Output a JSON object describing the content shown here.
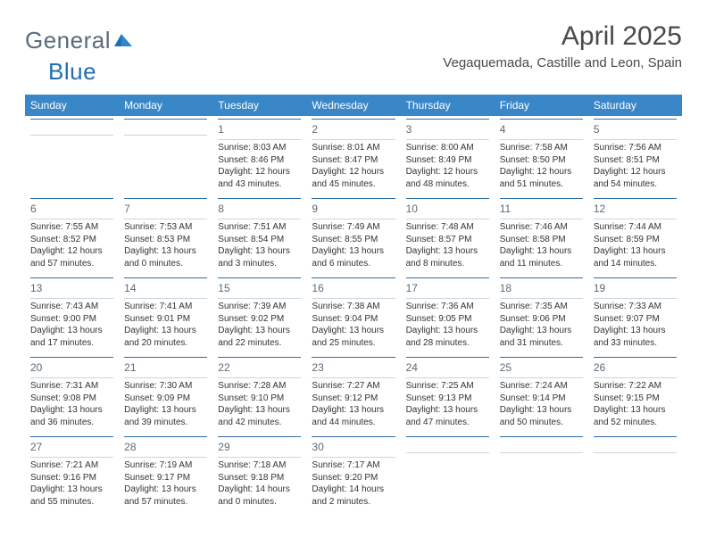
{
  "brand": {
    "word1": "General",
    "word2": "Blue",
    "text_color": "#5a6b7a",
    "accent_color": "#1f6fb2"
  },
  "header": {
    "title": "April 2025",
    "location": "Vegaquemada, Castille and Leon, Spain"
  },
  "style": {
    "header_bg": "#3a87c8",
    "header_fg": "#ffffff",
    "cell_top_border": "#2f6da8",
    "cell_bottom_border": "#c9d6e0",
    "daynum_color": "#5a6b7a",
    "detail_color": "#333333",
    "detail_fontsize": 10,
    "daynum_fontsize": 12,
    "th_fontsize": 12,
    "title_fontsize": 30,
    "location_fontsize": 15
  },
  "days_of_week": [
    "Sunday",
    "Monday",
    "Tuesday",
    "Wednesday",
    "Thursday",
    "Friday",
    "Saturday"
  ],
  "weeks": [
    [
      {
        "empty": true
      },
      {
        "empty": true
      },
      {
        "n": "1",
        "sunrise": "Sunrise: 8:03 AM",
        "sunset": "Sunset: 8:46 PM",
        "day1": "Daylight: 12 hours",
        "day2": "and 43 minutes."
      },
      {
        "n": "2",
        "sunrise": "Sunrise: 8:01 AM",
        "sunset": "Sunset: 8:47 PM",
        "day1": "Daylight: 12 hours",
        "day2": "and 45 minutes."
      },
      {
        "n": "3",
        "sunrise": "Sunrise: 8:00 AM",
        "sunset": "Sunset: 8:49 PM",
        "day1": "Daylight: 12 hours",
        "day2": "and 48 minutes."
      },
      {
        "n": "4",
        "sunrise": "Sunrise: 7:58 AM",
        "sunset": "Sunset: 8:50 PM",
        "day1": "Daylight: 12 hours",
        "day2": "and 51 minutes."
      },
      {
        "n": "5",
        "sunrise": "Sunrise: 7:56 AM",
        "sunset": "Sunset: 8:51 PM",
        "day1": "Daylight: 12 hours",
        "day2": "and 54 minutes."
      }
    ],
    [
      {
        "n": "6",
        "sunrise": "Sunrise: 7:55 AM",
        "sunset": "Sunset: 8:52 PM",
        "day1": "Daylight: 12 hours",
        "day2": "and 57 minutes."
      },
      {
        "n": "7",
        "sunrise": "Sunrise: 7:53 AM",
        "sunset": "Sunset: 8:53 PM",
        "day1": "Daylight: 13 hours",
        "day2": "and 0 minutes."
      },
      {
        "n": "8",
        "sunrise": "Sunrise: 7:51 AM",
        "sunset": "Sunset: 8:54 PM",
        "day1": "Daylight: 13 hours",
        "day2": "and 3 minutes."
      },
      {
        "n": "9",
        "sunrise": "Sunrise: 7:49 AM",
        "sunset": "Sunset: 8:55 PM",
        "day1": "Daylight: 13 hours",
        "day2": "and 6 minutes."
      },
      {
        "n": "10",
        "sunrise": "Sunrise: 7:48 AM",
        "sunset": "Sunset: 8:57 PM",
        "day1": "Daylight: 13 hours",
        "day2": "and 8 minutes."
      },
      {
        "n": "11",
        "sunrise": "Sunrise: 7:46 AM",
        "sunset": "Sunset: 8:58 PM",
        "day1": "Daylight: 13 hours",
        "day2": "and 11 minutes."
      },
      {
        "n": "12",
        "sunrise": "Sunrise: 7:44 AM",
        "sunset": "Sunset: 8:59 PM",
        "day1": "Daylight: 13 hours",
        "day2": "and 14 minutes."
      }
    ],
    [
      {
        "n": "13",
        "sunrise": "Sunrise: 7:43 AM",
        "sunset": "Sunset: 9:00 PM",
        "day1": "Daylight: 13 hours",
        "day2": "and 17 minutes."
      },
      {
        "n": "14",
        "sunrise": "Sunrise: 7:41 AM",
        "sunset": "Sunset: 9:01 PM",
        "day1": "Daylight: 13 hours",
        "day2": "and 20 minutes."
      },
      {
        "n": "15",
        "sunrise": "Sunrise: 7:39 AM",
        "sunset": "Sunset: 9:02 PM",
        "day1": "Daylight: 13 hours",
        "day2": "and 22 minutes."
      },
      {
        "n": "16",
        "sunrise": "Sunrise: 7:38 AM",
        "sunset": "Sunset: 9:04 PM",
        "day1": "Daylight: 13 hours",
        "day2": "and 25 minutes."
      },
      {
        "n": "17",
        "sunrise": "Sunrise: 7:36 AM",
        "sunset": "Sunset: 9:05 PM",
        "day1": "Daylight: 13 hours",
        "day2": "and 28 minutes."
      },
      {
        "n": "18",
        "sunrise": "Sunrise: 7:35 AM",
        "sunset": "Sunset: 9:06 PM",
        "day1": "Daylight: 13 hours",
        "day2": "and 31 minutes."
      },
      {
        "n": "19",
        "sunrise": "Sunrise: 7:33 AM",
        "sunset": "Sunset: 9:07 PM",
        "day1": "Daylight: 13 hours",
        "day2": "and 33 minutes."
      }
    ],
    [
      {
        "n": "20",
        "sunrise": "Sunrise: 7:31 AM",
        "sunset": "Sunset: 9:08 PM",
        "day1": "Daylight: 13 hours",
        "day2": "and 36 minutes."
      },
      {
        "n": "21",
        "sunrise": "Sunrise: 7:30 AM",
        "sunset": "Sunset: 9:09 PM",
        "day1": "Daylight: 13 hours",
        "day2": "and 39 minutes."
      },
      {
        "n": "22",
        "sunrise": "Sunrise: 7:28 AM",
        "sunset": "Sunset: 9:10 PM",
        "day1": "Daylight: 13 hours",
        "day2": "and 42 minutes."
      },
      {
        "n": "23",
        "sunrise": "Sunrise: 7:27 AM",
        "sunset": "Sunset: 9:12 PM",
        "day1": "Daylight: 13 hours",
        "day2": "and 44 minutes."
      },
      {
        "n": "24",
        "sunrise": "Sunrise: 7:25 AM",
        "sunset": "Sunset: 9:13 PM",
        "day1": "Daylight: 13 hours",
        "day2": "and 47 minutes."
      },
      {
        "n": "25",
        "sunrise": "Sunrise: 7:24 AM",
        "sunset": "Sunset: 9:14 PM",
        "day1": "Daylight: 13 hours",
        "day2": "and 50 minutes."
      },
      {
        "n": "26",
        "sunrise": "Sunrise: 7:22 AM",
        "sunset": "Sunset: 9:15 PM",
        "day1": "Daylight: 13 hours",
        "day2": "and 52 minutes."
      }
    ],
    [
      {
        "n": "27",
        "sunrise": "Sunrise: 7:21 AM",
        "sunset": "Sunset: 9:16 PM",
        "day1": "Daylight: 13 hours",
        "day2": "and 55 minutes."
      },
      {
        "n": "28",
        "sunrise": "Sunrise: 7:19 AM",
        "sunset": "Sunset: 9:17 PM",
        "day1": "Daylight: 13 hours",
        "day2": "and 57 minutes."
      },
      {
        "n": "29",
        "sunrise": "Sunrise: 7:18 AM",
        "sunset": "Sunset: 9:18 PM",
        "day1": "Daylight: 14 hours",
        "day2": "and 0 minutes."
      },
      {
        "n": "30",
        "sunrise": "Sunrise: 7:17 AM",
        "sunset": "Sunset: 9:20 PM",
        "day1": "Daylight: 14 hours",
        "day2": "and 2 minutes."
      },
      {
        "empty": true
      },
      {
        "empty": true
      },
      {
        "empty": true
      }
    ]
  ]
}
